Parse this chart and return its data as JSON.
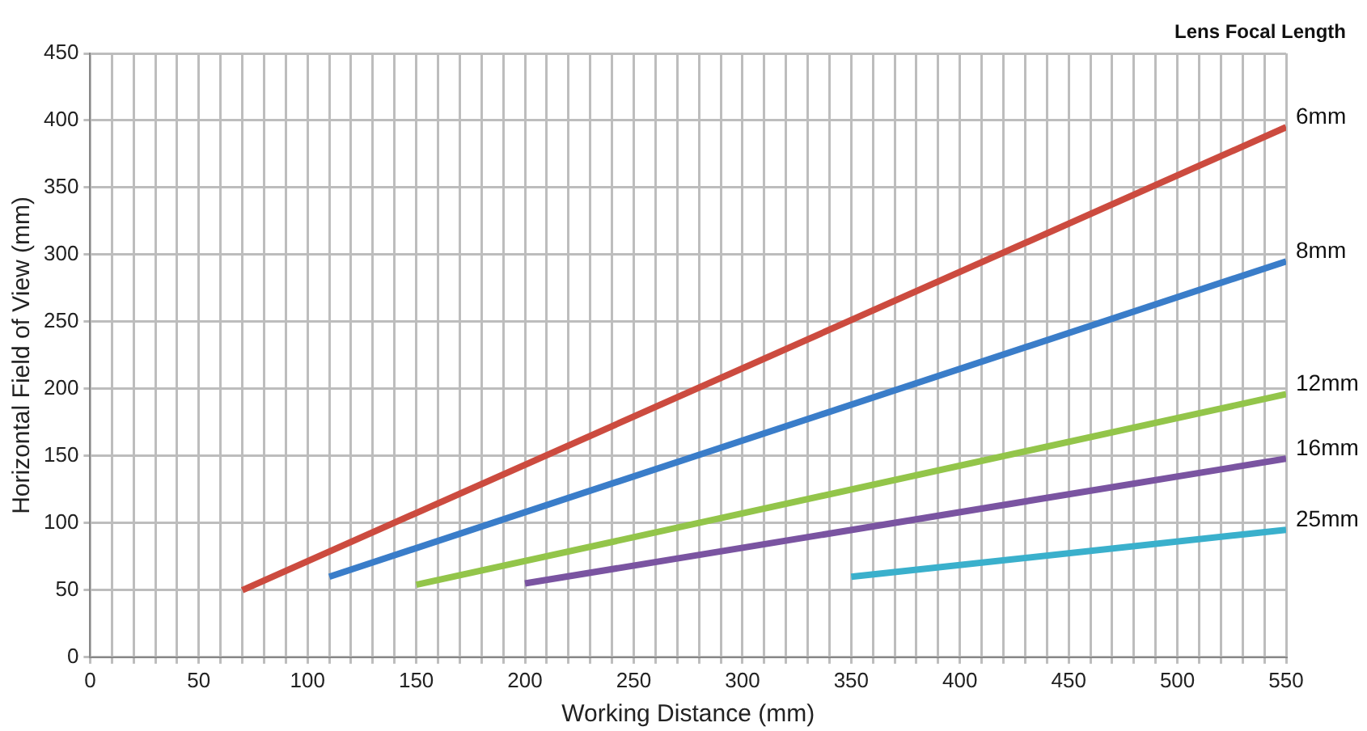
{
  "chart_data": {
    "type": "line",
    "xlabel": "Working Distance (mm)",
    "ylabel": "Horizontal Field of View (mm)",
    "legend_title": "Lens Focal Length",
    "xlim": [
      0,
      550
    ],
    "xticks": [
      0,
      {
        "value": 10,
        "label": null
      },
      {
        "value": 20,
        "label": null
      },
      {
        "value": 30,
        "label": null
      },
      {
        "value": 40,
        "label": null
      },
      50,
      {
        "value": 60,
        "label": null
      },
      {
        "value": 70,
        "label": null
      },
      {
        "value": 80,
        "label": null
      },
      {
        "value": 90,
        "label": null
      },
      100,
      {
        "value": 110,
        "label": null
      },
      {
        "value": 120,
        "label": null
      },
      {
        "value": 130,
        "label": null
      },
      {
        "value": 140,
        "label": null
      },
      150,
      {
        "value": 160,
        "label": null
      },
      {
        "value": 170,
        "label": null
      },
      {
        "value": 180,
        "label": null
      },
      {
        "value": 190,
        "label": null
      },
      200,
      {
        "value": 210,
        "label": null
      },
      {
        "value": 220,
        "label": null
      },
      {
        "value": 230,
        "label": null
      },
      {
        "value": 240,
        "label": null
      },
      250,
      {
        "value": 260,
        "label": null
      },
      {
        "value": 270,
        "label": null
      },
      {
        "value": 280,
        "label": null
      },
      {
        "value": 290,
        "label": null
      },
      300,
      {
        "value": 310,
        "label": null
      },
      {
        "value": 320,
        "label": null
      },
      {
        "value": 330,
        "label": null
      },
      {
        "value": 340,
        "label": null
      },
      350,
      {
        "value": 360,
        "label": null
      },
      {
        "value": 370,
        "label": null
      },
      {
        "value": 380,
        "label": null
      },
      {
        "value": 390,
        "label": null
      },
      400,
      {
        "value": 410,
        "label": null
      },
      {
        "value": 420,
        "label": null
      },
      {
        "value": 430,
        "label": null
      },
      {
        "value": 440,
        "label": null
      },
      450,
      {
        "value": 460,
        "label": null
      },
      {
        "value": 470,
        "label": null
      },
      {
        "value": 480,
        "label": null
      },
      {
        "value": 490,
        "label": null
      },
      500,
      {
        "value": 510,
        "label": null
      },
      {
        "value": 520,
        "label": null
      },
      {
        "value": 530,
        "label": null
      },
      {
        "value": 540,
        "label": null
      },
      550
    ],
    "ylim": [
      0,
      450
    ],
    "yticks": [
      0,
      50,
      100,
      150,
      200,
      250,
      300,
      350,
      400,
      450
    ],
    "grid": true,
    "legend": "right",
    "line_style": "solid",
    "series": [
      {
        "name": "6mm",
        "color": "#cc4b3f",
        "x": [
          70,
          550
        ],
        "values": [
          50,
          395
        ]
      },
      {
        "name": "8mm",
        "color": "#3a7dc9",
        "x": [
          110,
          550
        ],
        "values": [
          60,
          295
        ]
      },
      {
        "name": "12mm",
        "color": "#93c54a",
        "x": [
          150,
          550
        ],
        "values": [
          54,
          196
        ]
      },
      {
        "name": "16mm",
        "color": "#7a54a1",
        "x": [
          200,
          550
        ],
        "values": [
          55,
          148
        ]
      },
      {
        "name": "25mm",
        "color": "#3ab0cc",
        "x": [
          350,
          550
        ],
        "values": [
          60,
          95
        ]
      }
    ]
  }
}
